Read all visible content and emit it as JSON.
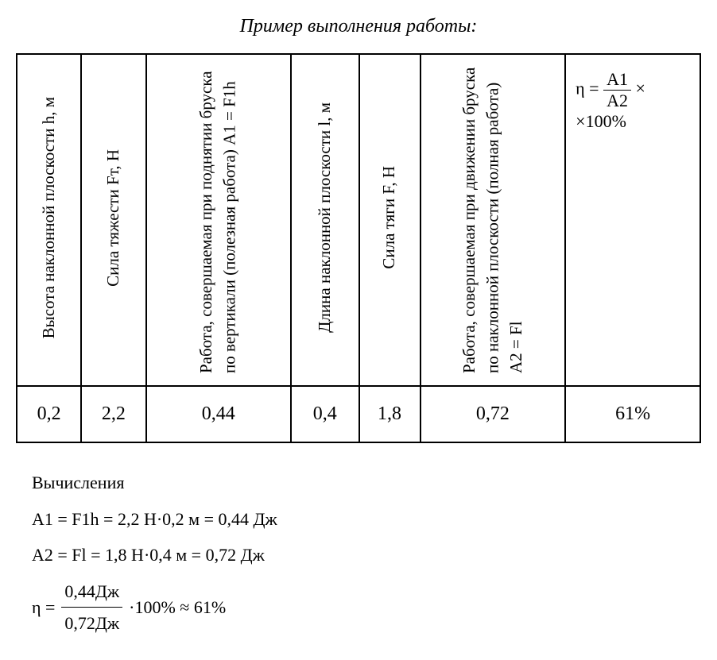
{
  "title": "Пример выполнения работы:",
  "headers": {
    "col1": "Высота наклонной плоскости  h, м",
    "col2": "Сила тяжести  Fт, Н",
    "col3": "Работа, совершаемая при поднятии бруска по верти­кали (полезная работа) А1 = F1h",
    "col4": "Длина наклонной плоскости  l, м",
    "col5": "Сила тяги   F, Н",
    "col6": "Работа, совершаемая при движении бруска по на­клонной плоскости (полная работа)   А2 = Fl",
    "col7_numerator": "А1",
    "col7_denominator": "А2",
    "col7_suffix": "×100%"
  },
  "row": {
    "col1": "0,2",
    "col2": "2,2",
    "col3": "0,44",
    "col4": "0,4",
    "col5": "1,8",
    "col6": "0,72",
    "col7": "61%"
  },
  "calc": {
    "heading": "Вычисления",
    "a1": "А1 = F1h = 2,2 Н·0,2 м = 0,44 Дж",
    "a2": "А2 = Fl = 1,8 Н·0,4 м = 0,72 Дж",
    "eta_numerator": "0,44Дж",
    "eta_denominator": "0,72Дж",
    "eta_result": "·100% ≈ 61%"
  }
}
